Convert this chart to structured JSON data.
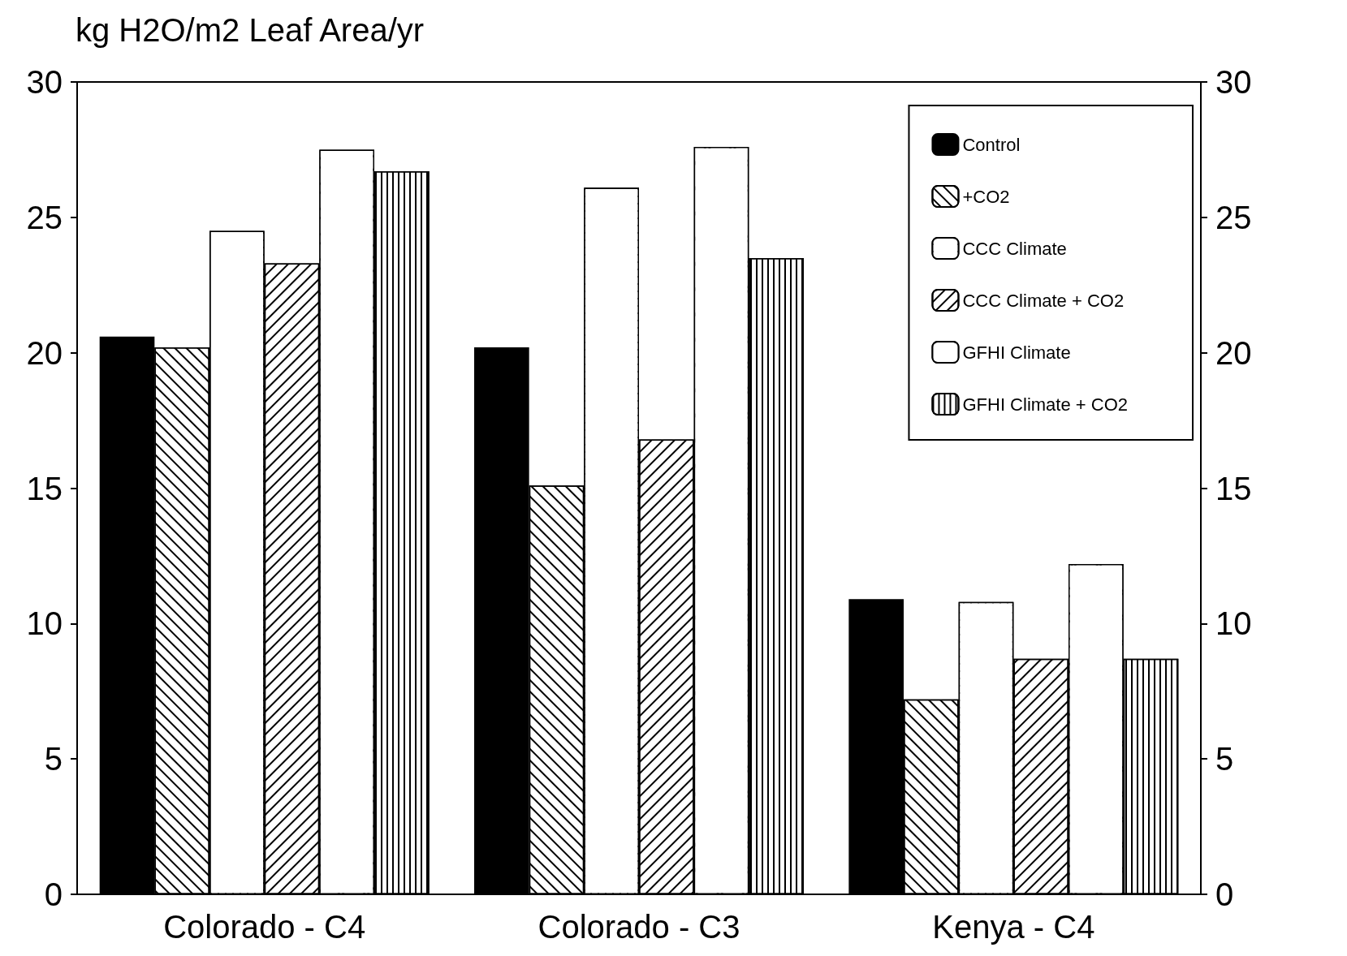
{
  "chart_data": {
    "type": "bar",
    "title": "kg H2O/m2 Leaf Area/yr",
    "categories": [
      "Colorado - C4",
      "Colorado - C3",
      "Kenya - C4"
    ],
    "series": [
      {
        "name": "Control",
        "color": "#000000",
        "values": [
          20.6,
          20.2,
          10.9
        ]
      },
      {
        "name": "+CO2",
        "color": "#ffffff",
        "values": [
          20.2,
          15.1,
          7.2
        ]
      },
      {
        "name": "CCC Climate",
        "color": "#ffffff",
        "values": [
          24.5,
          26.1,
          10.8
        ]
      },
      {
        "name": "CCC Climate + CO2",
        "color": "#ffffff",
        "values": [
          23.3,
          16.8,
          8.7
        ]
      },
      {
        "name": "GFHI Climate",
        "color": "#ffffff",
        "values": [
          27.5,
          27.6,
          12.2
        ]
      },
      {
        "name": "GFHI Climate + CO2",
        "color": "#ffffff",
        "values": [
          26.7,
          23.5,
          8.7
        ]
      }
    ],
    "ylim": [
      0,
      30
    ],
    "yticks": [
      0,
      5,
      10,
      15,
      20,
      25,
      30
    ],
    "y2lim": [
      0,
      30
    ],
    "y2ticks": [
      0,
      5,
      10,
      15,
      20,
      25,
      30
    ],
    "grid": false,
    "legend": "top right"
  }
}
